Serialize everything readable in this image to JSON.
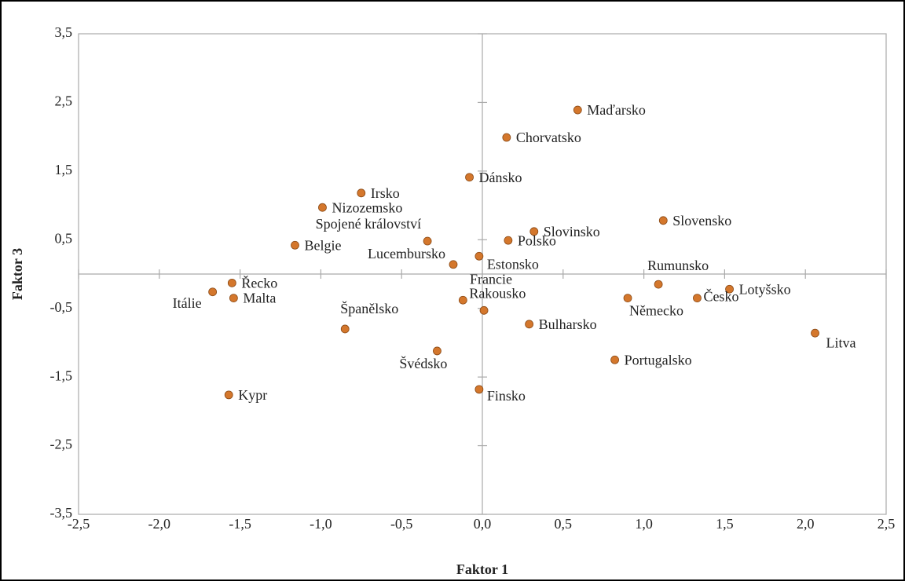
{
  "chart_data": {
    "type": "scatter",
    "x_label": "Faktor 1",
    "y_label": "Faktor 3",
    "color": "#d4772c",
    "xlim": [
      -2.5,
      2.5
    ],
    "xticks": [
      {
        "value": -2.5,
        "label": "-2,5"
      },
      {
        "value": -2,
        "label": "-2,0"
      },
      {
        "value": -1.5,
        "label": "-1,5"
      },
      {
        "value": -1,
        "label": "-1,0"
      },
      {
        "value": -0.5,
        "label": "-0,5"
      },
      {
        "value": 0,
        "label": "0,0"
      },
      {
        "value": 0.5,
        "label": "0,5"
      },
      {
        "value": 1,
        "label": "1,0"
      },
      {
        "value": 1.5,
        "label": "1,5"
      },
      {
        "value": 2,
        "label": "2,0"
      },
      {
        "value": 2.5,
        "label": "2,5"
      }
    ],
    "ylim": [
      -3.5,
      3.5
    ],
    "yticks": [
      {
        "value": -3.5,
        "label": "-3,5"
      },
      {
        "value": -2.5,
        "label": "-2,5"
      },
      {
        "value": -1.5,
        "label": "-1,5"
      },
      {
        "value": -0.5,
        "label": "-0,5"
      },
      {
        "value": 0.5,
        "label": "0,5"
      },
      {
        "value": 1.5,
        "label": "1,5"
      },
      {
        "value": 2.5,
        "label": "2,5"
      },
      {
        "value": 3.5,
        "label": "3,5"
      }
    ],
    "labels": [
      "Maďarsko",
      "Chorvatsko",
      "Dánsko",
      "Irsko",
      "Nizozemsko",
      "Slovinsko",
      "Slovensko",
      "Spojené království",
      "Polsko",
      "Belgie",
      "Estonsko",
      "Lucembursko",
      "Rumunsko",
      "Řecko",
      "Itálie",
      "Lotyšsko",
      "Malta",
      "Rakousko",
      "Německo",
      "Česko",
      "Francie",
      "Bulharsko",
      "Španělsko",
      "Litva",
      "Švédsko",
      "Portugalsko",
      "Finsko",
      "Kypr"
    ],
    "x": [
      0.59,
      0.15,
      -0.08,
      -0.75,
      -0.99,
      0.32,
      1.12,
      -0.34,
      0.16,
      -1.16,
      -0.02,
      -0.18,
      1.09,
      -1.55,
      -1.67,
      1.53,
      -1.54,
      -0.12,
      0.9,
      1.33,
      0.01,
      0.29,
      -0.85,
      2.06,
      -0.28,
      0.82,
      -0.02,
      -1.57
    ],
    "y": [
      2.39,
      1.99,
      1.41,
      1.18,
      0.97,
      0.62,
      0.78,
      0.48,
      0.49,
      0.42,
      0.26,
      0.14,
      -0.15,
      -0.13,
      -0.26,
      -0.22,
      -0.35,
      -0.38,
      -0.35,
      -0.35,
      -0.53,
      -0.73,
      -0.8,
      -0.86,
      -1.12,
      -1.25,
      -1.68,
      -1.76
    ]
  }
}
